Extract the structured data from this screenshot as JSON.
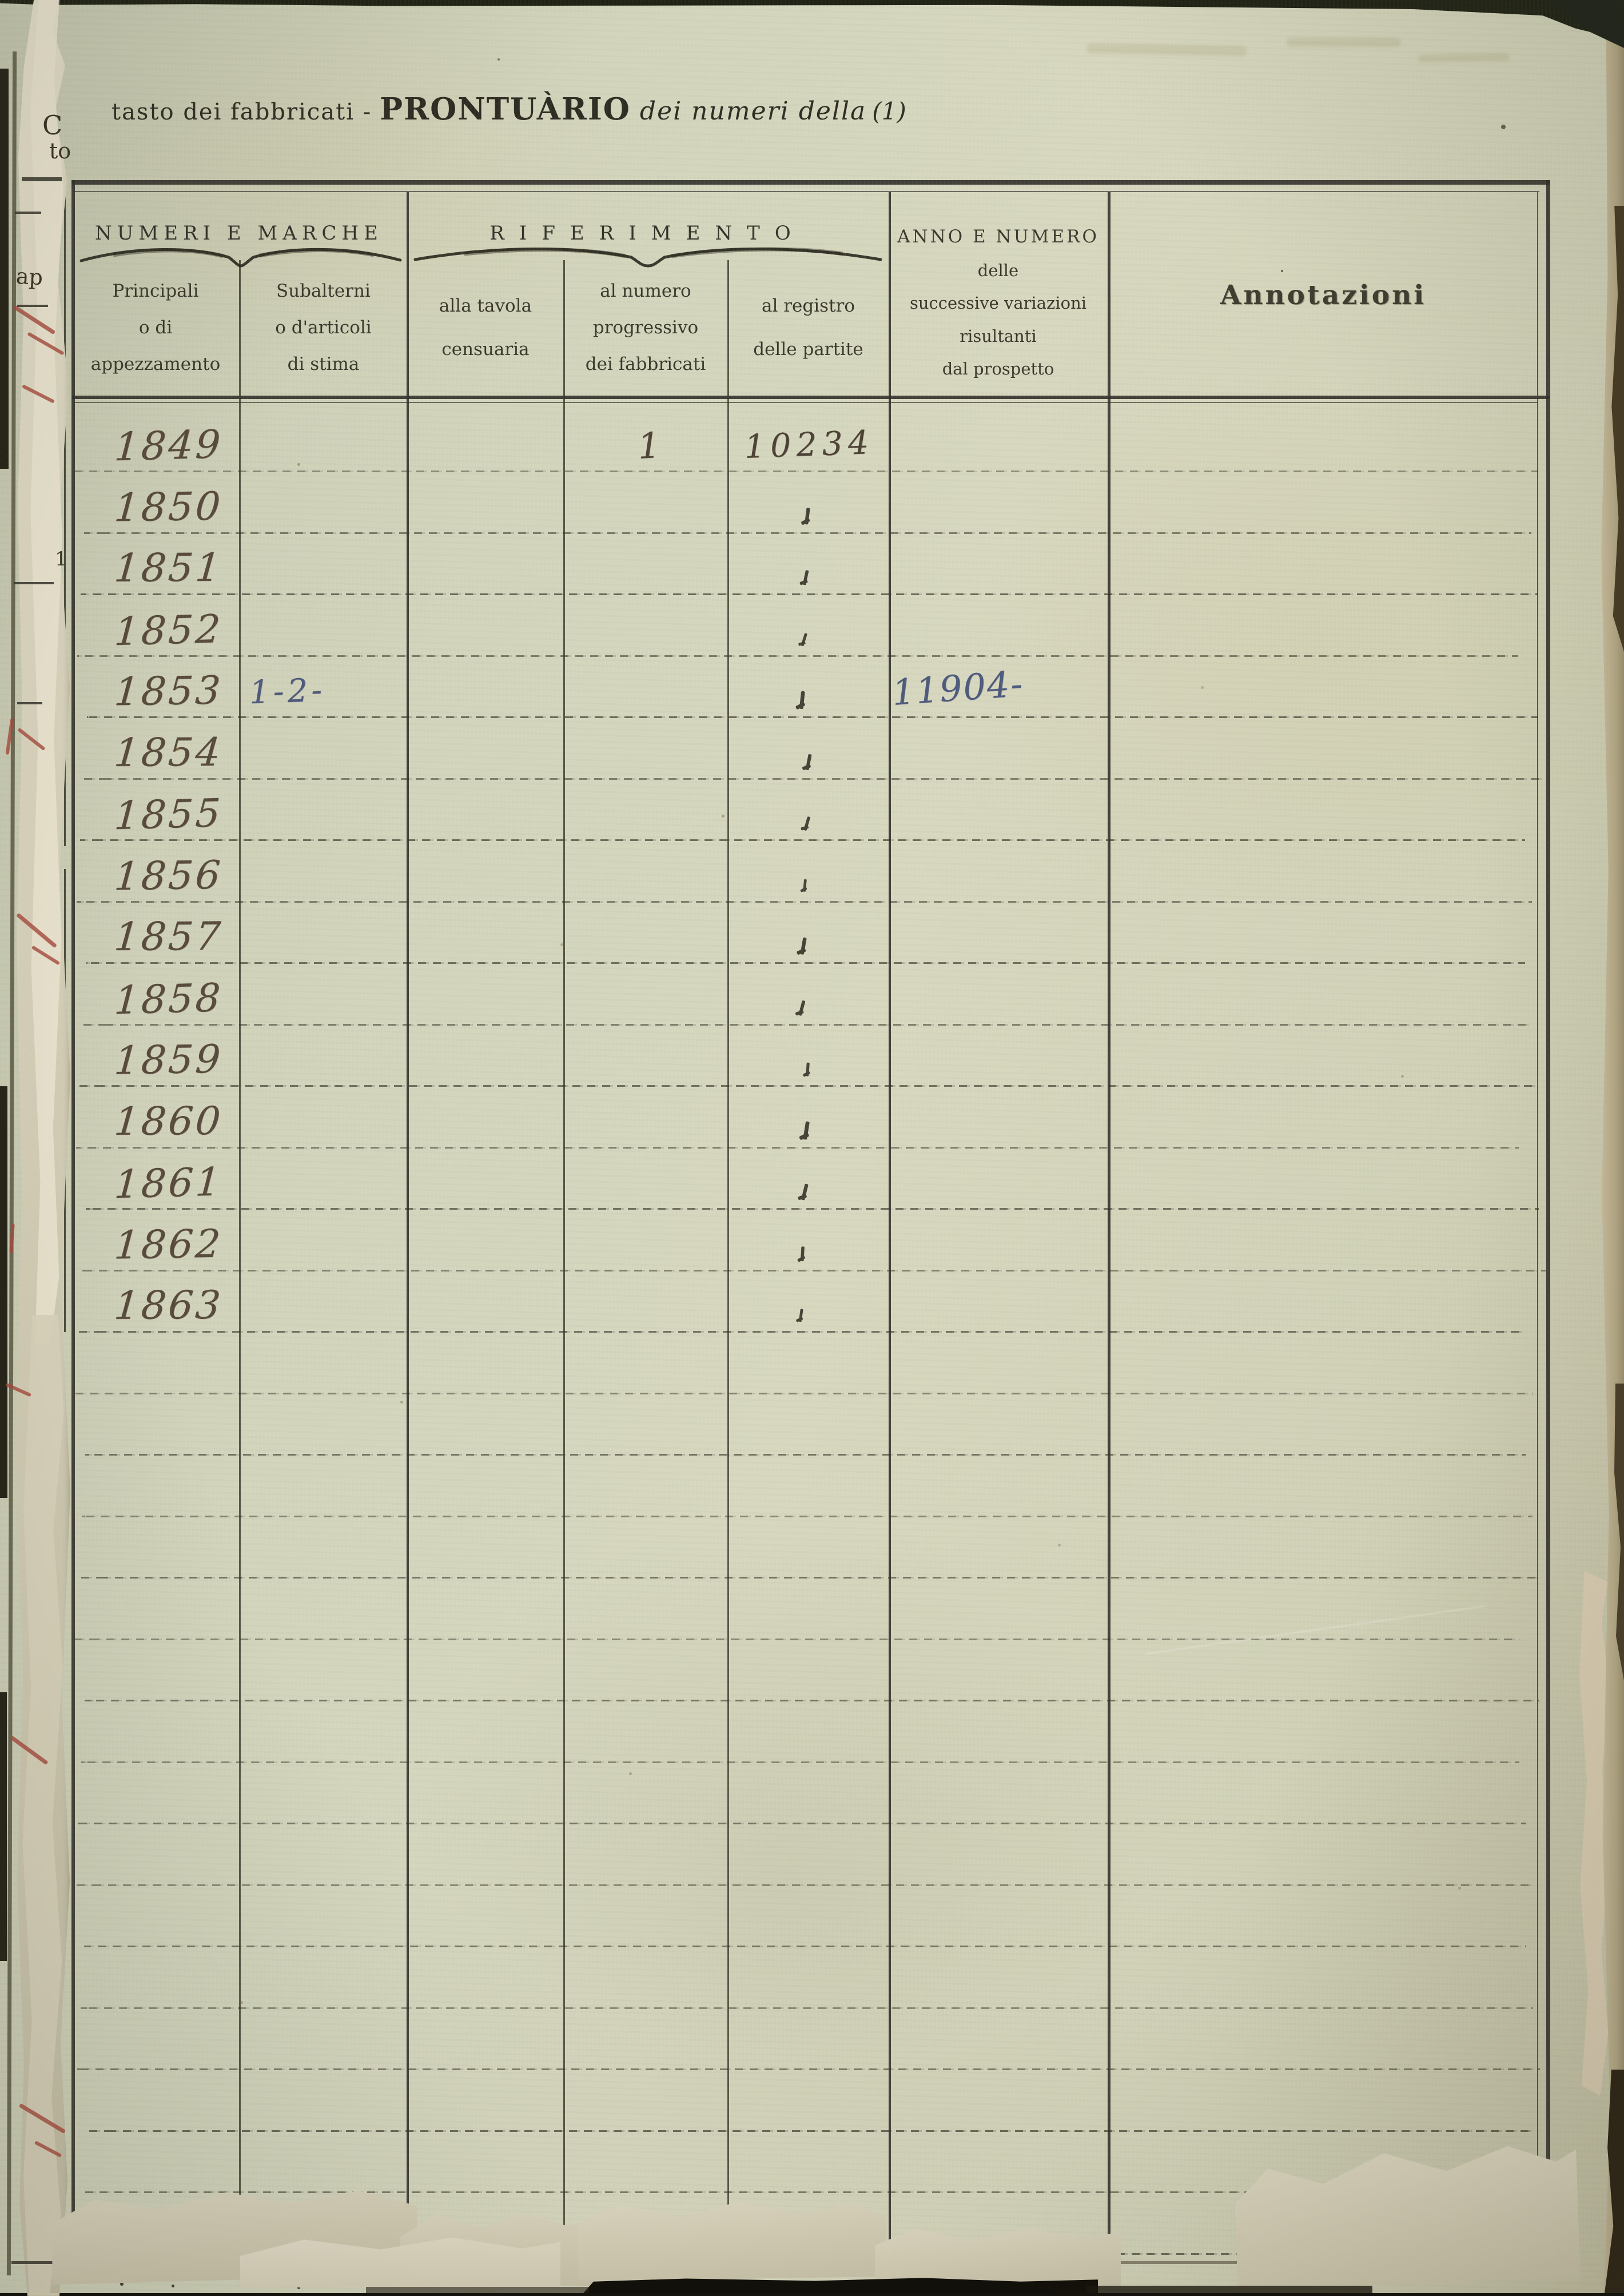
{
  "document": {
    "title": {
      "prefix": "tasto dei fabbricati -",
      "main": "PRONTUÀRIO",
      "suffix": "dei numeri della",
      "note": "(1)"
    },
    "margin_fragments": {
      "c": "C",
      "to": "to",
      "ap": "ap",
      "one": "1"
    }
  },
  "table": {
    "group_headers": {
      "numeri_marche": "NUMERI E MARCHE",
      "riferimento": "RIFERIMENTO",
      "anno_numero_lines": [
        "ANNO E NUMERO",
        "delle",
        "successive variazioni",
        "risultanti",
        "dal prospetto"
      ],
      "annotazioni": "Annotazioni"
    },
    "columns": [
      {
        "id": "principali",
        "header_lines": [
          "Principali",
          "o di",
          "appezzamento"
        ]
      },
      {
        "id": "subalterni",
        "header_lines": [
          "Subalterni",
          "o d'articoli",
          "di stima"
        ]
      },
      {
        "id": "tavola_censuaria",
        "header_lines": [
          "alla tavola",
          "censuaria"
        ]
      },
      {
        "id": "numero_progressivo",
        "header_lines": [
          "al numero",
          "progressivo",
          "dei fabbricati"
        ]
      },
      {
        "id": "registro_partite",
        "header_lines": [
          "al registro",
          "delle partite"
        ]
      },
      {
        "id": "anno_numero",
        "header_lines": []
      },
      {
        "id": "annotazioni",
        "header_lines": []
      }
    ],
    "rows": [
      {
        "principali": "1849",
        "subalterni": "",
        "tavola": "",
        "progressivo": "1",
        "registro": "10234",
        "anno": "",
        "annotazioni": ""
      },
      {
        "principali": "1850",
        "subalterni": "",
        "tavola": "",
        "progressivo": "",
        "registro": "〃",
        "anno": "",
        "annotazioni": ""
      },
      {
        "principali": "1851",
        "subalterni": "",
        "tavola": "",
        "progressivo": "",
        "registro": "〃",
        "anno": "",
        "annotazioni": ""
      },
      {
        "principali": "1852",
        "subalterni": "",
        "tavola": "",
        "progressivo": "",
        "registro": "〃",
        "anno": "",
        "annotazioni": ""
      },
      {
        "principali": "1853",
        "subalterni": "1-2-",
        "tavola": "",
        "progressivo": "",
        "registro": "〃",
        "anno": "11904-",
        "annotazioni": ""
      },
      {
        "principali": "1854",
        "subalterni": "",
        "tavola": "",
        "progressivo": "",
        "registro": "〃",
        "anno": "",
        "annotazioni": ""
      },
      {
        "principali": "1855",
        "subalterni": "",
        "tavola": "",
        "progressivo": "",
        "registro": "〃",
        "anno": "",
        "annotazioni": ""
      },
      {
        "principali": "1856",
        "subalterni": "",
        "tavola": "",
        "progressivo": "",
        "registro": "〃",
        "anno": "",
        "annotazioni": ""
      },
      {
        "principali": "1857",
        "subalterni": "",
        "tavola": "",
        "progressivo": "",
        "registro": "〃",
        "anno": "",
        "annotazioni": ""
      },
      {
        "principali": "1858",
        "subalterni": "",
        "tavola": "",
        "progressivo": "",
        "registro": "〃",
        "anno": "",
        "annotazioni": ""
      },
      {
        "principali": "1859",
        "subalterni": "",
        "tavola": "",
        "progressivo": "",
        "registro": "〃",
        "anno": "",
        "annotazioni": ""
      },
      {
        "principali": "1860",
        "subalterni": "",
        "tavola": "",
        "progressivo": "",
        "registro": "〃",
        "anno": "",
        "annotazioni": ""
      },
      {
        "principali": "1861",
        "subalterni": "",
        "tavola": "",
        "progressivo": "",
        "registro": "〃",
        "anno": "",
        "annotazioni": ""
      },
      {
        "principali": "1862",
        "subalterni": "",
        "tavola": "",
        "progressivo": "",
        "registro": "〃",
        "anno": "",
        "annotazioni": ""
      },
      {
        "principali": "1863",
        "subalterni": "",
        "tavola": "",
        "progressivo": "",
        "registro": "〃",
        "anno": "",
        "annotazioni": ""
      }
    ],
    "empty_rows": 15
  },
  "colors": {
    "paper": "#d0d1b9",
    "print_ink": "#35332a",
    "hand_ink_sepia": "#55483a",
    "hand_ink_blue": "#4d5a7c",
    "red_pencil": "#a84a3c",
    "rule_line": "#3c3a2e"
  }
}
